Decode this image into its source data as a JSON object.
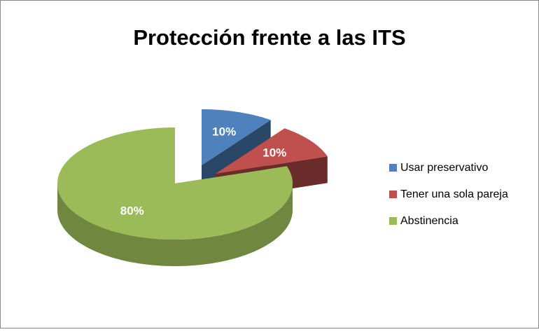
{
  "chart_data": {
    "type": "pie3d",
    "title": "Protección frente a las ITS",
    "categories": [
      "Usar preservativo",
      "Tener una sola pareja",
      "Abstinencia"
    ],
    "values": [
      10,
      10,
      80
    ],
    "value_labels": [
      "10%",
      "10%",
      "80%"
    ],
    "colors": [
      "#4f81bd",
      "#c0504d",
      "#9bbb59"
    ],
    "legend": "right"
  }
}
